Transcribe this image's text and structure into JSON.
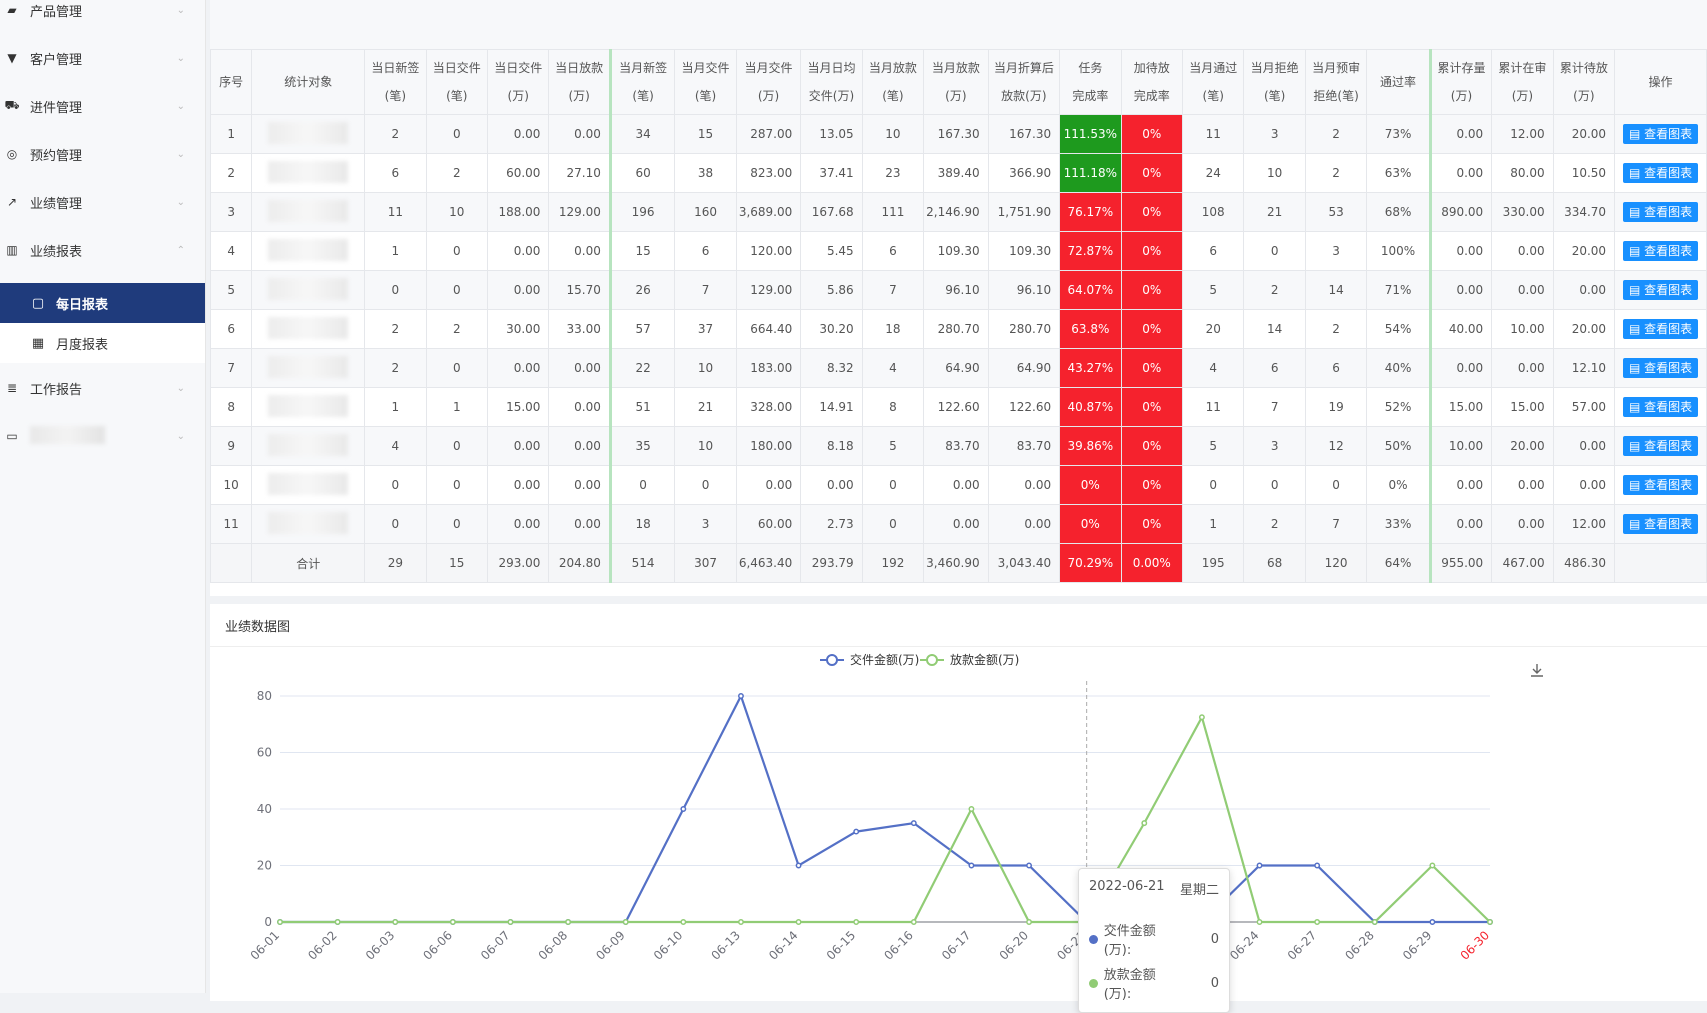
{
  "sidebar": {
    "items": [
      {
        "label": "产品管理",
        "icon": "briefcase-icon",
        "glyph": "▰"
      },
      {
        "label": "客户管理",
        "icon": "filter-icon",
        "glyph": "▼"
      },
      {
        "label": "进件管理",
        "icon": "cart-icon",
        "glyph": "⛟"
      },
      {
        "label": "预约管理",
        "icon": "target-icon",
        "glyph": "◎"
      },
      {
        "label": "业绩管理",
        "icon": "trend-icon",
        "glyph": "↗"
      },
      {
        "label": "业绩报表",
        "icon": "bar-chart-icon",
        "glyph": "▥"
      }
    ],
    "subitems": [
      {
        "label": "每日报表",
        "icon": "calendar-icon",
        "glyph": "▢",
        "active": true
      },
      {
        "label": "月度报表",
        "icon": "calendar-grid-icon",
        "glyph": "▦",
        "active": false
      }
    ],
    "extra": [
      {
        "label": "工作报告",
        "icon": "stack-icon",
        "glyph": "≣"
      }
    ]
  },
  "table": {
    "headers": [
      [
        "序号"
      ],
      [
        "统计对象"
      ],
      [
        "当日新签",
        "(笔)"
      ],
      [
        "当日交件",
        "(笔)"
      ],
      [
        "当日交件",
        "(万)"
      ],
      [
        "当日放款",
        "(万)"
      ],
      [
        "当月新签",
        "(笔)"
      ],
      [
        "当月交件",
        "(笔)"
      ],
      [
        "当月交件",
        "(万)"
      ],
      [
        "当月日均",
        "交件(万)"
      ],
      [
        "当月放款",
        "(笔)"
      ],
      [
        "当月放款",
        "(万)"
      ],
      [
        "当月折算后",
        "放款(万)"
      ],
      [
        "任务",
        "完成率"
      ],
      [
        "加待放",
        "完成率"
      ],
      [
        "当月通过",
        "(笔)"
      ],
      [
        "当月拒绝",
        "(笔)"
      ],
      [
        "当月预审",
        "拒绝(笔)"
      ],
      [
        "通过率"
      ],
      [
        "累计存量",
        "(万)"
      ],
      [
        "累计在审",
        "(万)"
      ],
      [
        "累计待放",
        "(万)"
      ],
      [
        "操作"
      ]
    ],
    "button_label": "查看图表",
    "rows": [
      [
        "1",
        "",
        "2",
        "0",
        "0.00",
        "0.00",
        "34",
        "15",
        "287.00",
        "13.05",
        "10",
        "167.30",
        "167.30",
        "111.53%",
        "0%",
        "11",
        "3",
        "2",
        "73%",
        "0.00",
        "12.00",
        "20.00"
      ],
      [
        "2",
        "",
        "6",
        "2",
        "60.00",
        "27.10",
        "60",
        "38",
        "823.00",
        "37.41",
        "23",
        "389.40",
        "366.90",
        "111.18%",
        "0%",
        "24",
        "10",
        "2",
        "63%",
        "0.00",
        "80.00",
        "10.50"
      ],
      [
        "3",
        "",
        "11",
        "10",
        "188.00",
        "129.00",
        "196",
        "160",
        "3,689.00",
        "167.68",
        "111",
        "2,146.90",
        "1,751.90",
        "76.17%",
        "0%",
        "108",
        "21",
        "53",
        "68%",
        "890.00",
        "330.00",
        "334.70"
      ],
      [
        "4",
        "",
        "1",
        "0",
        "0.00",
        "0.00",
        "15",
        "6",
        "120.00",
        "5.45",
        "6",
        "109.30",
        "109.30",
        "72.87%",
        "0%",
        "6",
        "0",
        "3",
        "100%",
        "0.00",
        "0.00",
        "20.00"
      ],
      [
        "5",
        "",
        "0",
        "0",
        "0.00",
        "15.70",
        "26",
        "7",
        "129.00",
        "5.86",
        "7",
        "96.10",
        "96.10",
        "64.07%",
        "0%",
        "5",
        "2",
        "14",
        "71%",
        "0.00",
        "0.00",
        "0.00"
      ],
      [
        "6",
        "",
        "2",
        "2",
        "30.00",
        "33.00",
        "57",
        "37",
        "664.40",
        "30.20",
        "18",
        "280.70",
        "280.70",
        "63.8%",
        "0%",
        "20",
        "14",
        "2",
        "54%",
        "40.00",
        "10.00",
        "20.00"
      ],
      [
        "7",
        "",
        "2",
        "0",
        "0.00",
        "0.00",
        "22",
        "10",
        "183.00",
        "8.32",
        "4",
        "64.90",
        "64.90",
        "43.27%",
        "0%",
        "4",
        "6",
        "6",
        "40%",
        "0.00",
        "0.00",
        "12.10"
      ],
      [
        "8",
        "",
        "1",
        "1",
        "15.00",
        "0.00",
        "51",
        "21",
        "328.00",
        "14.91",
        "8",
        "122.60",
        "122.60",
        "40.87%",
        "0%",
        "11",
        "7",
        "19",
        "52%",
        "15.00",
        "15.00",
        "57.00"
      ],
      [
        "9",
        "",
        "4",
        "0",
        "0.00",
        "0.00",
        "35",
        "10",
        "180.00",
        "8.18",
        "5",
        "83.70",
        "83.70",
        "39.86%",
        "0%",
        "5",
        "3",
        "12",
        "50%",
        "10.00",
        "20.00",
        "0.00"
      ],
      [
        "10",
        "",
        "0",
        "0",
        "0.00",
        "0.00",
        "0",
        "0",
        "0.00",
        "0.00",
        "0",
        "0.00",
        "0.00",
        "0%",
        "0%",
        "0",
        "0",
        "0",
        "0%",
        "0.00",
        "0.00",
        "0.00"
      ],
      [
        "11",
        "",
        "0",
        "0",
        "0.00",
        "0.00",
        "18",
        "3",
        "60.00",
        "2.73",
        "0",
        "0.00",
        "0.00",
        "0%",
        "0%",
        "1",
        "2",
        "7",
        "33%",
        "0.00",
        "0.00",
        "12.00"
      ]
    ],
    "total": [
      "",
      "合计",
      "29",
      "15",
      "293.00",
      "204.80",
      "514",
      "307",
      "6,463.40",
      "293.79",
      "192",
      "3,460.90",
      "3,043.40",
      "70.29%",
      "0.00%",
      "195",
      "68",
      "120",
      "64%",
      "955.00",
      "467.00",
      "486.30"
    ],
    "colors": {
      "green": "#1e9a1e",
      "red": "#f5222d",
      "button": "#1890ff"
    }
  },
  "chart_panel": {
    "title": "业绩数据图",
    "download_icon": "download-icon"
  },
  "chart_data": {
    "type": "line",
    "categories": [
      "06-01",
      "06-02",
      "06-03",
      "06-06",
      "06-07",
      "06-08",
      "06-09",
      "06-10",
      "06-13",
      "06-14",
      "06-15",
      "06-16",
      "06-17",
      "06-20",
      "06-21",
      "06-22",
      "06-23",
      "06-24",
      "06-27",
      "06-28",
      "06-29",
      "06-30"
    ],
    "series": [
      {
        "name": "交件金额(万)",
        "color": "#5470c6",
        "values": [
          0,
          0,
          0,
          0,
          0,
          0,
          0,
          40,
          80,
          20,
          32,
          35,
          20,
          20,
          0,
          0,
          0,
          20,
          20,
          0,
          0,
          0
        ]
      },
      {
        "name": "放款金额(万)",
        "color": "#91cc75",
        "values": [
          0,
          0,
          0,
          0,
          0,
          0,
          0,
          0,
          0,
          0,
          0,
          0,
          40,
          0,
          0,
          35,
          72.5,
          0,
          0,
          0,
          20,
          0
        ]
      }
    ],
    "ylim": [
      0,
      80
    ],
    "yticks": [
      0,
      20,
      40,
      60,
      80
    ],
    "legend": "top-center",
    "grid": true,
    "highlight_category": "06-30",
    "highlight_color": "#f5222d"
  },
  "tooltip": {
    "date": "2022-06-21",
    "weekday": "星期二",
    "rows": [
      {
        "label": "交件金额(万):",
        "value": "0",
        "color": "#5470c6"
      },
      {
        "label": "放款金额(万):",
        "value": "0",
        "color": "#91cc75"
      }
    ]
  }
}
